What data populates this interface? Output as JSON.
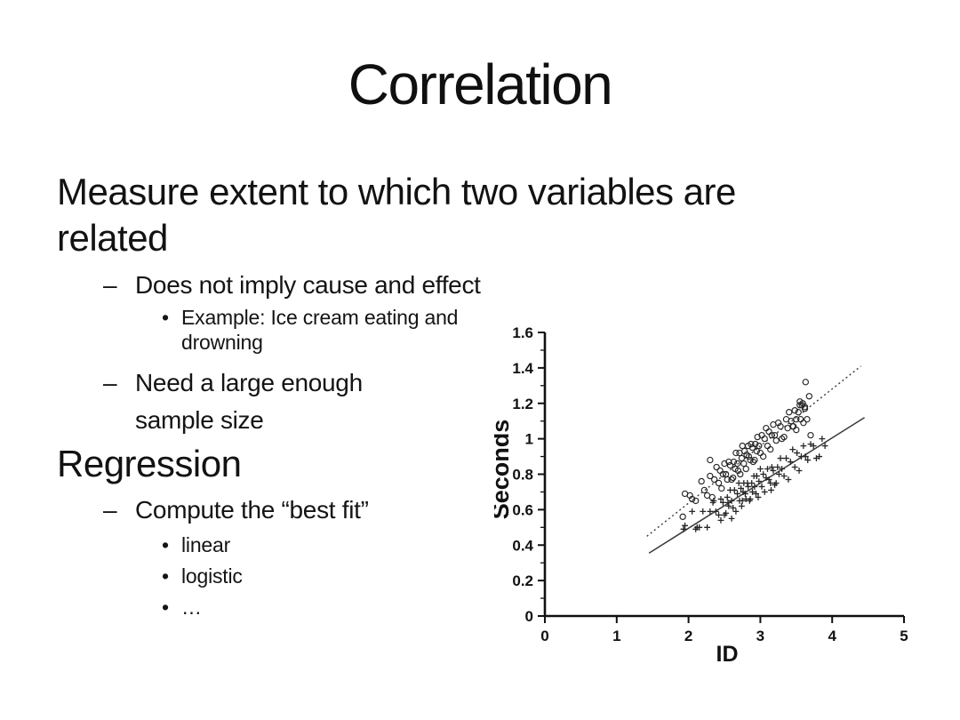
{
  "slide": {
    "title": "Correlation",
    "heading_correlation": {
      "lines": [
        "Measure extent to which two variables are",
        "related"
      ]
    },
    "bullets_correlation": [
      {
        "marker": "–",
        "lines": [
          "Does not imply cause and effect"
        ]
      },
      {
        "marker": "•",
        "lines": [
          "Example: Ice cream eating and",
          "drowning"
        ]
      },
      {
        "marker": "–",
        "lines": [
          "Need a large enough",
          "sample size"
        ]
      }
    ],
    "heading_regression": "Regression",
    "bullets_regression": [
      {
        "marker": "–",
        "lines": [
          "Compute the “best fit”"
        ]
      },
      {
        "marker": "•",
        "lines": [
          "linear"
        ]
      },
      {
        "marker": "•",
        "lines": [
          "logistic"
        ]
      },
      {
        "marker": "•",
        "lines": [
          "…"
        ]
      }
    ]
  },
  "chart_data": {
    "type": "scatter",
    "title": "",
    "xlabel": "ID",
    "ylabel": "Seconds",
    "xlim": [
      0,
      5
    ],
    "ylim": [
      0,
      1.6
    ],
    "x_ticks": [
      0,
      1,
      2,
      3,
      4,
      5
    ],
    "x_tick_labels": [
      "0",
      "1",
      "2",
      "3",
      "4",
      "5"
    ],
    "y_ticks": [
      0,
      0.2,
      0.4,
      0.6,
      0.8,
      1,
      1.2,
      1.4,
      1.6
    ],
    "y_tick_labels": [
      "0",
      "0.2",
      "0.4",
      "0.6",
      "0.8",
      "1",
      "1.2",
      "1.4",
      "1.6"
    ],
    "y_minor_ticks": [
      0.1,
      0.3,
      0.5,
      0.7,
      0.9,
      1.1,
      1.3,
      1.5
    ],
    "grid": false,
    "legend": "none",
    "marker_color": "#262626",
    "line_color": "#3a3a3a",
    "series": [
      {
        "name": "open-circle series",
        "marker": "circle",
        "fit_line": {
          "style": "dotted",
          "from": [
            1.42,
            0.45
          ],
          "to": [
            4.4,
            1.41
          ]
        },
        "points": [
          [
            1.92,
            0.56
          ],
          [
            2.02,
            0.68
          ],
          [
            2.1,
            0.65
          ],
          [
            2.18,
            0.76
          ],
          [
            2.22,
            0.71
          ],
          [
            2.26,
            0.68
          ],
          [
            2.3,
            0.79
          ],
          [
            2.33,
            0.67
          ],
          [
            2.36,
            0.77
          ],
          [
            2.39,
            0.84
          ],
          [
            2.42,
            0.75
          ],
          [
            2.44,
            0.82
          ],
          [
            2.46,
            0.72
          ],
          [
            2.48,
            0.8
          ],
          [
            2.5,
            0.86
          ],
          [
            2.52,
            0.8
          ],
          [
            2.54,
            0.77
          ],
          [
            2.56,
            0.87
          ],
          [
            2.58,
            0.85
          ],
          [
            2.6,
            0.77
          ],
          [
            2.62,
            0.78
          ],
          [
            2.63,
            0.87
          ],
          [
            2.65,
            0.83
          ],
          [
            2.66,
            0.92
          ],
          [
            2.68,
            0.86
          ],
          [
            2.69,
            0.82
          ],
          [
            2.71,
            0.92
          ],
          [
            2.72,
            0.8
          ],
          [
            2.74,
            0.89
          ],
          [
            2.75,
            0.96
          ],
          [
            2.77,
            0.86
          ],
          [
            2.78,
            0.93
          ],
          [
            2.8,
            0.83
          ],
          [
            2.81,
            0.91
          ],
          [
            2.83,
            0.96
          ],
          [
            2.84,
            0.9
          ],
          [
            2.86,
            0.88
          ],
          [
            2.87,
            0.97
          ],
          [
            2.89,
            0.95
          ],
          [
            2.9,
            0.87
          ],
          [
            2.92,
            0.88
          ],
          [
            2.93,
            0.97
          ],
          [
            2.95,
            0.93
          ],
          [
            2.96,
            1.01
          ],
          [
            2.98,
            0.96
          ],
          [
            3.0,
            0.92
          ],
          [
            3.02,
            1.02
          ],
          [
            3.04,
            0.9
          ],
          [
            3.06,
            1.0
          ],
          [
            3.08,
            1.06
          ],
          [
            3.1,
            0.96
          ],
          [
            3.12,
            1.04
          ],
          [
            3.14,
            0.94
          ],
          [
            3.16,
            1.02
          ],
          [
            3.18,
            1.08
          ],
          [
            3.2,
            1.02
          ],
          [
            3.22,
            0.99
          ],
          [
            3.25,
            1.09
          ],
          [
            3.28,
            1.07
          ],
          [
            3.3,
            1.0
          ],
          [
            3.33,
            1.01
          ],
          [
            3.36,
            1.11
          ],
          [
            3.38,
            1.06
          ],
          [
            3.4,
            1.15
          ],
          [
            3.43,
            1.1
          ],
          [
            3.46,
            1.07
          ],
          [
            3.48,
            1.16
          ],
          [
            3.5,
            1.05
          ],
          [
            3.53,
            1.15
          ],
          [
            3.55,
            1.21
          ],
          [
            3.56,
            1.11
          ],
          [
            3.58,
            1.19
          ],
          [
            3.6,
            1.09
          ],
          [
            3.62,
            1.17
          ],
          [
            3.55,
            1.19
          ],
          [
            3.5,
            1.11
          ],
          [
            3.45,
            1.07
          ],
          [
            3.59,
            1.2
          ],
          [
            3.62,
            1.18
          ],
          [
            3.65,
            1.11
          ],
          [
            1.95,
            0.69
          ],
          [
            2.05,
            0.66
          ],
          [
            2.3,
            0.88
          ],
          [
            3.63,
            1.32
          ],
          [
            3.7,
            1.02
          ],
          [
            3.68,
            1.24
          ]
        ]
      },
      {
        "name": "plus series",
        "marker": "plus",
        "fit_line": {
          "style": "solid",
          "from": [
            1.45,
            0.355
          ],
          "to": [
            4.45,
            1.12
          ]
        },
        "points": [
          [
            1.95,
            0.51
          ],
          [
            2.05,
            0.59
          ],
          [
            2.12,
            0.5
          ],
          [
            2.2,
            0.59
          ],
          [
            2.26,
            0.5
          ],
          [
            2.3,
            0.59
          ],
          [
            2.34,
            0.64
          ],
          [
            2.38,
            0.59
          ],
          [
            2.42,
            0.57
          ],
          [
            2.45,
            0.66
          ],
          [
            2.48,
            0.64
          ],
          [
            2.5,
            0.57
          ],
          [
            2.52,
            0.58
          ],
          [
            2.54,
            0.67
          ],
          [
            2.56,
            0.62
          ],
          [
            2.58,
            0.71
          ],
          [
            2.6,
            0.65
          ],
          [
            2.62,
            0.61
          ],
          [
            2.64,
            0.71
          ],
          [
            2.66,
            0.59
          ],
          [
            2.68,
            0.69
          ],
          [
            2.7,
            0.75
          ],
          [
            2.71,
            0.65
          ],
          [
            2.73,
            0.72
          ],
          [
            2.74,
            0.62
          ],
          [
            2.76,
            0.7
          ],
          [
            2.77,
            0.75
          ],
          [
            2.79,
            0.69
          ],
          [
            2.8,
            0.66
          ],
          [
            2.82,
            0.75
          ],
          [
            2.83,
            0.73
          ],
          [
            2.85,
            0.65
          ],
          [
            2.86,
            0.66
          ],
          [
            2.88,
            0.75
          ],
          [
            2.89,
            0.7
          ],
          [
            2.91,
            0.79
          ],
          [
            2.92,
            0.73
          ],
          [
            2.94,
            0.69
          ],
          [
            2.95,
            0.79
          ],
          [
            2.97,
            0.67
          ],
          [
            2.98,
            0.76
          ],
          [
            3.0,
            0.83
          ],
          [
            3.02,
            0.73
          ],
          [
            3.04,
            0.8
          ],
          [
            3.06,
            0.7
          ],
          [
            3.08,
            0.78
          ],
          [
            3.1,
            0.83
          ],
          [
            3.12,
            0.77
          ],
          [
            3.14,
            0.75
          ],
          [
            3.16,
            0.84
          ],
          [
            3.18,
            0.82
          ],
          [
            3.2,
            0.74
          ],
          [
            3.22,
            0.75
          ],
          [
            3.24,
            0.84
          ],
          [
            3.26,
            0.8
          ],
          [
            3.28,
            0.89
          ],
          [
            3.3,
            0.83
          ],
          [
            3.33,
            0.79
          ],
          [
            3.36,
            0.89
          ],
          [
            3.39,
            0.77
          ],
          [
            3.42,
            0.87
          ],
          [
            3.45,
            0.94
          ],
          [
            3.48,
            0.84
          ],
          [
            3.51,
            0.92
          ],
          [
            3.54,
            0.82
          ],
          [
            3.57,
            0.9
          ],
          [
            3.6,
            0.96
          ],
          [
            3.63,
            0.9
          ],
          [
            3.66,
            0.88
          ],
          [
            3.7,
            0.97
          ],
          [
            3.74,
            0.96
          ],
          [
            3.78,
            0.89
          ],
          [
            3.82,
            0.9
          ],
          [
            3.86,
            1.0
          ],
          [
            3.9,
            0.96
          ],
          [
            2.35,
            0.65
          ],
          [
            2.55,
            0.64
          ],
          [
            2.75,
            0.65
          ],
          [
            2.95,
            0.79
          ],
          [
            3.15,
            0.71
          ],
          [
            1.93,
            0.49
          ],
          [
            2.1,
            0.49
          ],
          [
            2.15,
            0.5
          ],
          [
            2.45,
            0.54
          ],
          [
            2.6,
            0.55
          ]
        ]
      }
    ]
  }
}
